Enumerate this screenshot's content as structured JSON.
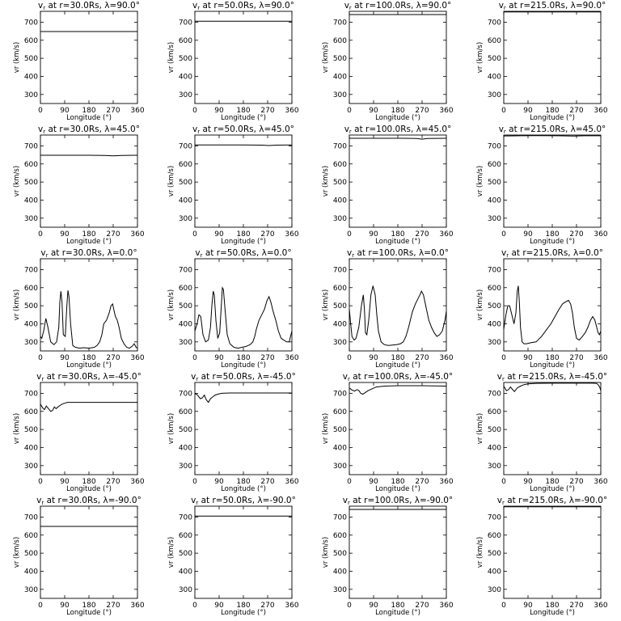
{
  "figure": {
    "title_format": "v{sub} at r={r}Rs, λ={lat}°",
    "title_sub": "r",
    "radii": [
      "30.0",
      "50.0",
      "100.0",
      "215.0"
    ],
    "latitudes": [
      "90.0",
      "45.0",
      "0.0",
      "-45.0",
      "-90.0"
    ]
  },
  "chart_data": {
    "type": "line",
    "layout": "grid 5 rows (latitude) x 4 columns (radius)",
    "xlabel": "Longitude (°)",
    "ylabel": "vr (km/s)",
    "xlim": [
      0,
      360
    ],
    "ylim": [
      250,
      760
    ],
    "xticks": [
      0,
      90,
      180,
      270,
      360
    ],
    "yticks": [
      300,
      400,
      500,
      600,
      700
    ],
    "panels": [
      {
        "row": 0,
        "col": 0,
        "r": "30.0",
        "lat": "90.0",
        "x": [
          0,
          360
        ],
        "y": [
          648,
          648
        ]
      },
      {
        "row": 0,
        "col": 1,
        "r": "50.0",
        "lat": "90.0",
        "x": [
          0,
          360
        ],
        "y": [
          705,
          705
        ]
      },
      {
        "row": 0,
        "col": 2,
        "r": "100.0",
        "lat": "90.0",
        "x": [
          0,
          360
        ],
        "y": [
          742,
          742
        ]
      },
      {
        "row": 0,
        "col": 3,
        "r": "215.0",
        "lat": "90.0",
        "x": [
          0,
          360
        ],
        "y": [
          757,
          757
        ]
      },
      {
        "row": 1,
        "col": 0,
        "r": "30.0",
        "lat": "45.0",
        "x": [
          0,
          180,
          240,
          270,
          300,
          360
        ],
        "y": [
          648,
          648,
          647,
          645,
          647,
          648
        ]
      },
      {
        "row": 1,
        "col": 1,
        "r": "50.0",
        "lat": "45.0",
        "x": [
          0,
          180,
          250,
          275,
          300,
          360
        ],
        "y": [
          705,
          705,
          704,
          702,
          704,
          705
        ]
      },
      {
        "row": 1,
        "col": 2,
        "r": "100.0",
        "lat": "45.0",
        "x": [
          0,
          200,
          250,
          270,
          290,
          360
        ],
        "y": [
          742,
          742,
          741,
          737,
          741,
          742
        ]
      },
      {
        "row": 1,
        "col": 3,
        "r": "215.0",
        "lat": "45.0",
        "x": [
          0,
          60,
          120,
          200,
          260,
          300,
          360
        ],
        "y": [
          755,
          756,
          757,
          756,
          754,
          756,
          756
        ]
      },
      {
        "row": 2,
        "col": 0,
        "r": "30.0",
        "lat": "0.0",
        "x": [
          0,
          5,
          12,
          20,
          28,
          38,
          50,
          60,
          68,
          72,
          76,
          80,
          85,
          92,
          98,
          102,
          106,
          112,
          120,
          130,
          145,
          160,
          180,
          200,
          210,
          220,
          228,
          235,
          245,
          255,
          262,
          268,
          272,
          278,
          285,
          292,
          300,
          310,
          320,
          330,
          340,
          348,
          355,
          360
        ],
        "y": [
          330,
          320,
          360,
          430,
          380,
          300,
          285,
          300,
          380,
          520,
          580,
          520,
          340,
          330,
          500,
          585,
          550,
          400,
          280,
          270,
          265,
          268,
          265,
          270,
          280,
          300,
          340,
          400,
          420,
          460,
          500,
          510,
          480,
          440,
          420,
          380,
          320,
          290,
          270,
          265,
          275,
          290,
          270,
          265
        ]
      },
      {
        "row": 2,
        "col": 1,
        "r": "50.0",
        "lat": "0.0",
        "x": [
          0,
          8,
          15,
          22,
          30,
          40,
          50,
          58,
          63,
          68,
          72,
          78,
          85,
          92,
          98,
          102,
          106,
          112,
          120,
          130,
          145,
          160,
          175,
          190,
          205,
          215,
          222,
          228,
          238,
          248,
          258,
          268,
          275,
          282,
          290,
          300,
          310,
          320,
          330,
          340,
          350,
          355,
          360
        ],
        "y": [
          360,
          400,
          450,
          440,
          340,
          300,
          310,
          380,
          500,
          580,
          560,
          420,
          320,
          350,
          500,
          600,
          590,
          480,
          340,
          290,
          270,
          265,
          270,
          275,
          285,
          300,
          330,
          370,
          420,
          450,
          480,
          530,
          550,
          520,
          470,
          420,
          360,
          320,
          310,
          300,
          300,
          330,
          360
        ]
      },
      {
        "row": 2,
        "col": 2,
        "r": "100.0",
        "lat": "0.0",
        "x": [
          0,
          5,
          10,
          18,
          25,
          35,
          45,
          52,
          56,
          60,
          65,
          72,
          80,
          88,
          96,
          102,
          108,
          118,
          130,
          145,
          160,
          175,
          190,
          200,
          210,
          220,
          228,
          235,
          245,
          255,
          262,
          268,
          275,
          285,
          295,
          305,
          315,
          325,
          335,
          345,
          355,
          360
        ],
        "y": [
          480,
          400,
          330,
          310,
          320,
          380,
          500,
          560,
          480,
          350,
          340,
          420,
          560,
          610,
          560,
          450,
          360,
          300,
          285,
          280,
          282,
          285,
          290,
          300,
          330,
          380,
          430,
          470,
          510,
          540,
          560,
          580,
          560,
          490,
          420,
          380,
          350,
          330,
          340,
          360,
          420,
          470
        ]
      },
      {
        "row": 2,
        "col": 3,
        "r": "215.0",
        "lat": "0.0",
        "x": [
          0,
          8,
          15,
          22,
          30,
          38,
          45,
          50,
          54,
          58,
          62,
          68,
          75,
          85,
          100,
          120,
          140,
          160,
          175,
          190,
          205,
          218,
          228,
          240,
          248,
          255,
          262,
          270,
          280,
          292,
          302,
          312,
          322,
          330,
          338,
          345,
          350,
          355,
          360
        ],
        "y": [
          370,
          450,
          500,
          500,
          450,
          400,
          460,
          580,
          610,
          520,
          380,
          300,
          290,
          290,
          295,
          300,
          330,
          370,
          400,
          440,
          480,
          510,
          520,
          530,
          510,
          460,
          380,
          320,
          310,
          330,
          350,
          380,
          420,
          440,
          420,
          380,
          350,
          340,
          360
        ]
      },
      {
        "row": 3,
        "col": 0,
        "r": "30.0",
        "lat": "-45.0",
        "x": [
          0,
          8,
          15,
          22,
          30,
          38,
          45,
          52,
          58,
          65,
          72,
          80,
          90,
          100,
          120,
          180,
          270,
          360
        ],
        "y": [
          640,
          620,
          610,
          630,
          615,
          600,
          605,
          625,
          615,
          625,
          632,
          640,
          645,
          650,
          650,
          650,
          650,
          650
        ]
      },
      {
        "row": 3,
        "col": 1,
        "r": "50.0",
        "lat": "-45.0",
        "x": [
          0,
          10,
          20,
          28,
          35,
          42,
          50,
          58,
          66,
          75,
          85,
          100,
          130,
          180,
          270,
          360
        ],
        "y": [
          700,
          690,
          670,
          675,
          690,
          665,
          650,
          670,
          680,
          690,
          695,
          700,
          702,
          702,
          702,
          702
        ]
      },
      {
        "row": 3,
        "col": 2,
        "r": "100.0",
        "lat": "-45.0",
        "x": [
          0,
          10,
          20,
          28,
          35,
          42,
          50,
          60,
          70,
          85,
          100,
          130,
          180,
          270,
          360
        ],
        "y": [
          730,
          718,
          712,
          720,
          716,
          700,
          695,
          705,
          715,
          725,
          735,
          740,
          742,
          742,
          740
        ]
      },
      {
        "row": 3,
        "col": 3,
        "r": "215.0",
        "lat": "-45.0",
        "x": [
          0,
          10,
          18,
          25,
          32,
          40,
          50,
          62,
          75,
          90,
          120,
          180,
          270,
          330,
          345,
          352,
          357,
          360
        ],
        "y": [
          740,
          715,
          720,
          735,
          722,
          710,
          730,
          740,
          748,
          752,
          755,
          756,
          756,
          756,
          754,
          745,
          730,
          715
        ]
      },
      {
        "row": 4,
        "col": 0,
        "r": "30.0",
        "lat": "-90.0",
        "x": [
          0,
          360
        ],
        "y": [
          648,
          648
        ]
      },
      {
        "row": 4,
        "col": 1,
        "r": "50.0",
        "lat": "-90.0",
        "x": [
          0,
          360
        ],
        "y": [
          705,
          705
        ]
      },
      {
        "row": 4,
        "col": 2,
        "r": "100.0",
        "lat": "-90.0",
        "x": [
          0,
          360
        ],
        "y": [
          742,
          742
        ]
      },
      {
        "row": 4,
        "col": 3,
        "r": "215.0",
        "lat": "-90.0",
        "x": [
          0,
          360
        ],
        "y": [
          757,
          757
        ]
      }
    ]
  }
}
